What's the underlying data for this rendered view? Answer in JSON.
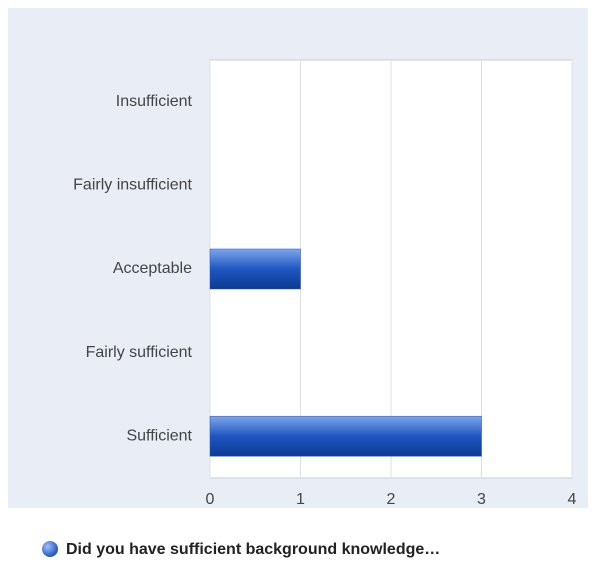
{
  "chart_data": {
    "type": "bar",
    "orientation": "horizontal",
    "categories": [
      "Insufficient",
      "Fairly insufficient",
      "Acceptable",
      "Fairly sufficient",
      "Sufficient"
    ],
    "series": [
      {
        "name": "Did you have sufficient background knowledge…",
        "color": "#1f56c0",
        "values": [
          0,
          0,
          1,
          0,
          3
        ]
      }
    ],
    "xlim": [
      0,
      4
    ],
    "xticks": [
      0,
      1,
      2,
      3,
      4
    ],
    "grid": true
  }
}
